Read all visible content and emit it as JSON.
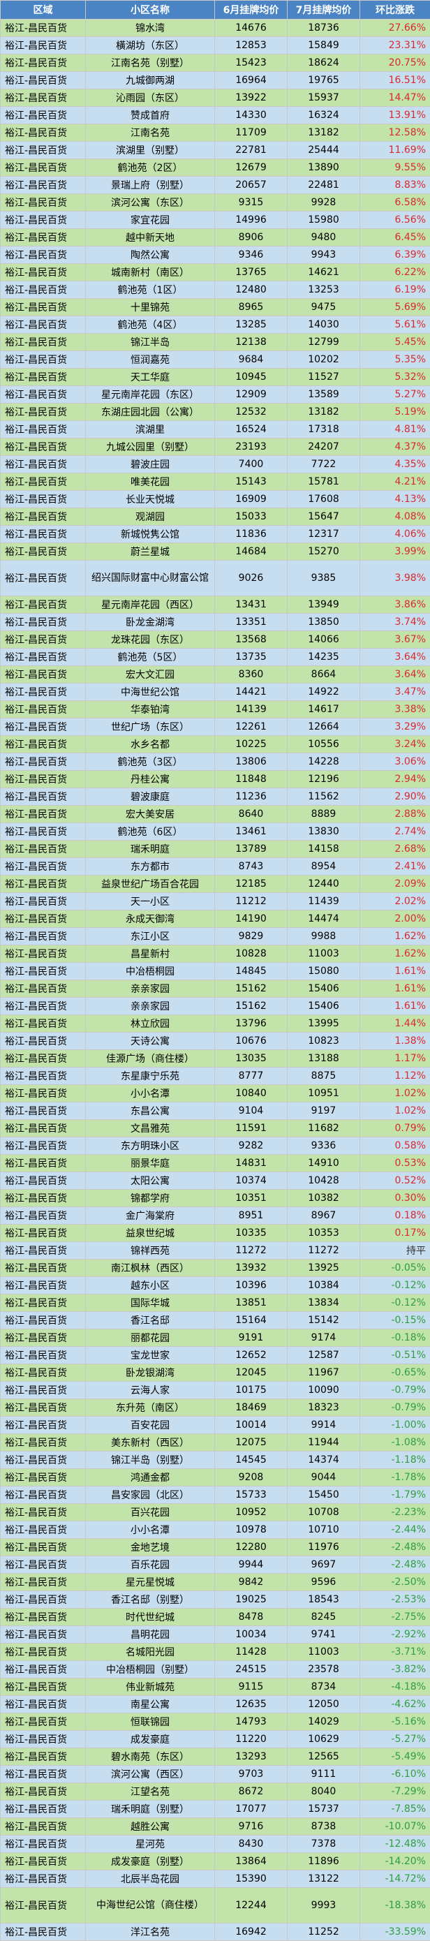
{
  "headers": [
    "区域",
    "小区名称",
    "6月挂牌均价",
    "7月挂牌均价",
    "环比涨跌"
  ],
  "colors": {
    "header_bg": "#4a84c4",
    "row_green": "#c2e3a9",
    "row_blue": "#c7def0",
    "up": "#d9292f",
    "down": "#2f9e3e",
    "flat": "#333333"
  },
  "rows": [
    [
      "裕江-昌民百货",
      "锦水湾",
      "14676",
      "18736",
      "27.66%"
    ],
    [
      "裕江-昌民百货",
      "橫湖坊（东区）",
      "12853",
      "15849",
      "23.31%"
    ],
    [
      "裕江-昌民百货",
      "江南名苑（别墅）",
      "15423",
      "18624",
      "20.75%"
    ],
    [
      "裕江-昌民百货",
      "九城御两湖",
      "16964",
      "19765",
      "16.51%"
    ],
    [
      "裕江-昌民百货",
      "沁雨园（东区）",
      "13922",
      "15937",
      "14.47%"
    ],
    [
      "裕江-昌民百货",
      "赞成首府",
      "14330",
      "16324",
      "13.91%"
    ],
    [
      "裕江-昌民百货",
      "江南名苑",
      "11709",
      "13182",
      "12.58%"
    ],
    [
      "裕江-昌民百货",
      "滨湖里（别墅）",
      "22781",
      "25444",
      "11.69%"
    ],
    [
      "裕江-昌民百货",
      "鹤池苑（2区）",
      "12679",
      "13890",
      "9.55%"
    ],
    [
      "裕江-昌民百货",
      "景瑞上府（别墅）",
      "20657",
      "22481",
      "8.83%"
    ],
    [
      "裕江-昌民百货",
      "滨河公寓（东区）",
      "9315",
      "9928",
      "6.58%"
    ],
    [
      "裕江-昌民百货",
      "家宜花园",
      "14996",
      "15980",
      "6.56%"
    ],
    [
      "裕江-昌民百货",
      "越中新天地",
      "8906",
      "9480",
      "6.45%"
    ],
    [
      "裕江-昌民百货",
      "陶然公寓",
      "9346",
      "9943",
      "6.39%"
    ],
    [
      "裕江-昌民百货",
      "城南新村（南区）",
      "13765",
      "14621",
      "6.22%"
    ],
    [
      "裕江-昌民百货",
      "鹤池苑（1区）",
      "12480",
      "13253",
      "6.19%"
    ],
    [
      "裕江-昌民百货",
      "十里锦苑",
      "8965",
      "9475",
      "5.69%"
    ],
    [
      "裕江-昌民百货",
      "鹤池苑（4区）",
      "13285",
      "14030",
      "5.61%"
    ],
    [
      "裕江-昌民百货",
      "锦江半岛",
      "12138",
      "12799",
      "5.45%"
    ],
    [
      "裕江-昌民百货",
      "恒润嘉苑",
      "9684",
      "10202",
      "5.35%"
    ],
    [
      "裕江-昌民百货",
      "天工华庭",
      "10945",
      "11527",
      "5.32%"
    ],
    [
      "裕江-昌民百货",
      "星元南岸花园（东区）",
      "12909",
      "13589",
      "5.27%"
    ],
    [
      "裕江-昌民百货",
      "东湖庄园北园（公寓）",
      "12532",
      "13182",
      "5.19%"
    ],
    [
      "裕江-昌民百货",
      "滨湖里",
      "16524",
      "17318",
      "4.81%"
    ],
    [
      "裕江-昌民百货",
      "九城公园里（别墅）",
      "23193",
      "24207",
      "4.37%"
    ],
    [
      "裕江-昌民百货",
      "碧波庄园",
      "7400",
      "7722",
      "4.35%"
    ],
    [
      "裕江-昌民百货",
      "唯美花园",
      "15143",
      "15781",
      "4.21%"
    ],
    [
      "裕江-昌民百货",
      "长业天悦城",
      "16909",
      "17608",
      "4.13%"
    ],
    [
      "裕江-昌民百货",
      "观湖园",
      "15033",
      "15647",
      "4.08%"
    ],
    [
      "裕江-昌民百货",
      "新城悦隽公馆",
      "11836",
      "12317",
      "4.06%"
    ],
    [
      "裕江-昌民百货",
      "蔚兰星城",
      "14684",
      "15270",
      "3.99%"
    ],
    [
      "裕江-昌民百货",
      "绍兴国际财富中心财富公馆",
      "9026",
      "9385",
      "3.98%"
    ],
    [
      "裕江-昌民百货",
      "星元南岸花园（西区）",
      "13431",
      "13949",
      "3.86%"
    ],
    [
      "裕江-昌民百货",
      "卧龙金湖湾",
      "13351",
      "13850",
      "3.74%"
    ],
    [
      "裕江-昌民百货",
      "龙珠花园（东区）",
      "13568",
      "14066",
      "3.67%"
    ],
    [
      "裕江-昌民百货",
      "鹤池苑（5区）",
      "13735",
      "14235",
      "3.64%"
    ],
    [
      "裕江-昌民百货",
      "宏大文汇园",
      "8360",
      "8664",
      "3.64%"
    ],
    [
      "裕江-昌民百货",
      "中海世纪公馆",
      "14421",
      "14922",
      "3.47%"
    ],
    [
      "裕江-昌民百货",
      "华泰铂湾",
      "14139",
      "14617",
      "3.38%"
    ],
    [
      "裕江-昌民百货",
      "世纪广场（东区）",
      "12261",
      "12664",
      "3.29%"
    ],
    [
      "裕江-昌民百货",
      "水乡名都",
      "10225",
      "10556",
      "3.24%"
    ],
    [
      "裕江-昌民百货",
      "鹤池苑（3区）",
      "13806",
      "14228",
      "3.06%"
    ],
    [
      "裕江-昌民百货",
      "丹桂公寓",
      "11848",
      "12196",
      "2.94%"
    ],
    [
      "裕江-昌民百货",
      "碧波康庭",
      "11236",
      "11562",
      "2.90%"
    ],
    [
      "裕江-昌民百货",
      "宏大美安居",
      "8640",
      "8889",
      "2.88%"
    ],
    [
      "裕江-昌民百货",
      "鹤池苑（6区）",
      "13461",
      "13830",
      "2.74%"
    ],
    [
      "裕江-昌民百货",
      "瑞禾明庭",
      "13789",
      "14158",
      "2.68%"
    ],
    [
      "裕江-昌民百货",
      "东方都市",
      "8743",
      "8954",
      "2.41%"
    ],
    [
      "裕江-昌民百货",
      "益泉世纪广场百合花园",
      "12185",
      "12440",
      "2.09%"
    ],
    [
      "裕江-昌民百货",
      "天一小区",
      "11212",
      "11439",
      "2.02%"
    ],
    [
      "裕江-昌民百货",
      "永成天御湾",
      "14190",
      "14474",
      "2.00%"
    ],
    [
      "裕江-昌民百货",
      "东江小区",
      "9829",
      "9988",
      "1.62%"
    ],
    [
      "裕江-昌民百货",
      "昌星新村",
      "10828",
      "11003",
      "1.62%"
    ],
    [
      "裕江-昌民百货",
      "中冶梧桐园",
      "14845",
      "15080",
      "1.61%"
    ],
    [
      "裕江-昌民百货",
      "亲亲家园",
      "15162",
      "15406",
      "1.61%"
    ],
    [
      "裕江-昌民百货",
      "亲亲家园",
      "15162",
      "15406",
      "1.61%"
    ],
    [
      "裕江-昌民百货",
      "林立欣园",
      "13796",
      "13995",
      "1.44%"
    ],
    [
      "裕江-昌民百货",
      "天诗公寓",
      "10676",
      "10823",
      "1.38%"
    ],
    [
      "裕江-昌民百货",
      "佳源广场（商住楼）",
      "13035",
      "13188",
      "1.17%"
    ],
    [
      "裕江-昌民百货",
      "东星康宁乐苑",
      "8777",
      "8875",
      "1.12%"
    ],
    [
      "裕江-昌民百货",
      "小小名潭",
      "10840",
      "10951",
      "1.02%"
    ],
    [
      "裕江-昌民百货",
      "东昌公寓",
      "9104",
      "9197",
      "1.02%"
    ],
    [
      "裕江-昌民百货",
      "文昌雅苑",
      "11591",
      "11682",
      "0.79%"
    ],
    [
      "裕江-昌民百货",
      "东方明珠小区",
      "9282",
      "9336",
      "0.58%"
    ],
    [
      "裕江-昌民百货",
      "丽景华庭",
      "14831",
      "14910",
      "0.53%"
    ],
    [
      "裕江-昌民百货",
      "太阳公寓",
      "10374",
      "10428",
      "0.52%"
    ],
    [
      "裕江-昌民百货",
      "锦都学府",
      "10351",
      "10382",
      "0.30%"
    ],
    [
      "裕江-昌民百货",
      "金广海棠府",
      "8951",
      "8967",
      "0.18%"
    ],
    [
      "裕江-昌民百货",
      "益泉世纪城",
      "10335",
      "10353",
      "0.17%"
    ],
    [
      "裕江-昌民百货",
      "锦祥西苑",
      "11272",
      "11272",
      "持平"
    ],
    [
      "裕江-昌民百货",
      "南江枫林（西区）",
      "13932",
      "13925",
      "-0.05%"
    ],
    [
      "裕江-昌民百货",
      "越东小区",
      "10396",
      "10384",
      "-0.12%"
    ],
    [
      "裕江-昌民百货",
      "国际华城",
      "13851",
      "13834",
      "-0.12%"
    ],
    [
      "裕江-昌民百货",
      "香江名邸",
      "15164",
      "15142",
      "-0.15%"
    ],
    [
      "裕江-昌民百货",
      "丽都花园",
      "9191",
      "9174",
      "-0.18%"
    ],
    [
      "裕江-昌民百货",
      "宝龙世家",
      "12652",
      "12587",
      "-0.51%"
    ],
    [
      "裕江-昌民百货",
      "卧龙银湖湾",
      "12045",
      "11967",
      "-0.65%"
    ],
    [
      "裕江-昌民百货",
      "云海人家",
      "10175",
      "10090",
      "-0.79%"
    ],
    [
      "裕江-昌民百货",
      "东升苑（南区）",
      "18469",
      "18323",
      "-0.79%"
    ],
    [
      "裕江-昌民百货",
      "百安花园",
      "10014",
      "9914",
      "-1.00%"
    ],
    [
      "裕江-昌民百货",
      "美东新村（西区）",
      "12075",
      "11944",
      "-1.08%"
    ],
    [
      "裕江-昌民百货",
      "锦江半岛（别墅）",
      "14545",
      "14374",
      "-1.18%"
    ],
    [
      "裕江-昌民百货",
      "鸿通金都",
      "9208",
      "9044",
      "-1.78%"
    ],
    [
      "裕江-昌民百货",
      "昌安家园（北区）",
      "15733",
      "15450",
      "-1.79%"
    ],
    [
      "裕江-昌民百货",
      "百兴花园",
      "10952",
      "10708",
      "-2.23%"
    ],
    [
      "裕江-昌民百货",
      "小小名潭",
      "10978",
      "10710",
      "-2.44%"
    ],
    [
      "裕江-昌民百货",
      "金地艺境",
      "12280",
      "11976",
      "-2.48%"
    ],
    [
      "裕江-昌民百货",
      "百乐花园",
      "9944",
      "9697",
      "-2.48%"
    ],
    [
      "裕江-昌民百货",
      "星元星悦城",
      "9842",
      "9596",
      "-2.50%"
    ],
    [
      "裕江-昌民百货",
      "香江名邸（别墅）",
      "19025",
      "18543",
      "-2.53%"
    ],
    [
      "裕江-昌民百货",
      "时代世纪城",
      "8478",
      "8245",
      "-2.75%"
    ],
    [
      "裕江-昌民百货",
      "昌明花园",
      "10034",
      "9741",
      "-2.92%"
    ],
    [
      "裕江-昌民百货",
      "名城阳光园",
      "11428",
      "11003",
      "-3.71%"
    ],
    [
      "裕江-昌民百货",
      "中冶梧桐园（别墅）",
      "24515",
      "23578",
      "-3.82%"
    ],
    [
      "裕江-昌民百货",
      "伟业新城苑",
      "9115",
      "8734",
      "-4.18%"
    ],
    [
      "裕江-昌民百货",
      "南星公寓",
      "12635",
      "12050",
      "-4.62%"
    ],
    [
      "裕江-昌民百货",
      "恒联锦园",
      "14793",
      "14029",
      "-5.16%"
    ],
    [
      "裕江-昌民百货",
      "成发豪庭",
      "11220",
      "10629",
      "-5.27%"
    ],
    [
      "裕江-昌民百货",
      "碧水南苑（东区）",
      "13293",
      "12565",
      "-5.49%"
    ],
    [
      "裕江-昌民百货",
      "滨河公寓（西区）",
      "9703",
      "9111",
      "-6.10%"
    ],
    [
      "裕江-昌民百货",
      "江望名苑",
      "8672",
      "8040",
      "-7.29%"
    ],
    [
      "裕江-昌民百货",
      "瑞禾明庭（别墅）",
      "17077",
      "15737",
      "-7.85%"
    ],
    [
      "裕江-昌民百货",
      "越胜公寓",
      "9716",
      "8738",
      "-10.07%"
    ],
    [
      "裕江-昌民百货",
      "星河苑",
      "8430",
      "7378",
      "-12.48%"
    ],
    [
      "裕江-昌民百货",
      "成发豪庭（别墅）",
      "13864",
      "11896",
      "-14.20%"
    ],
    [
      "裕江-昌民百货",
      "北辰半岛花园",
      "15390",
      "13122",
      "-14.72%"
    ],
    [
      "裕江-昌民百货",
      "中海世纪公馆（商住楼）",
      "12244",
      "9993",
      "-18.38%"
    ],
    [
      "裕江-昌民百货",
      "洋江名苑",
      "16942",
      "11252",
      "-33.59%"
    ]
  ]
}
